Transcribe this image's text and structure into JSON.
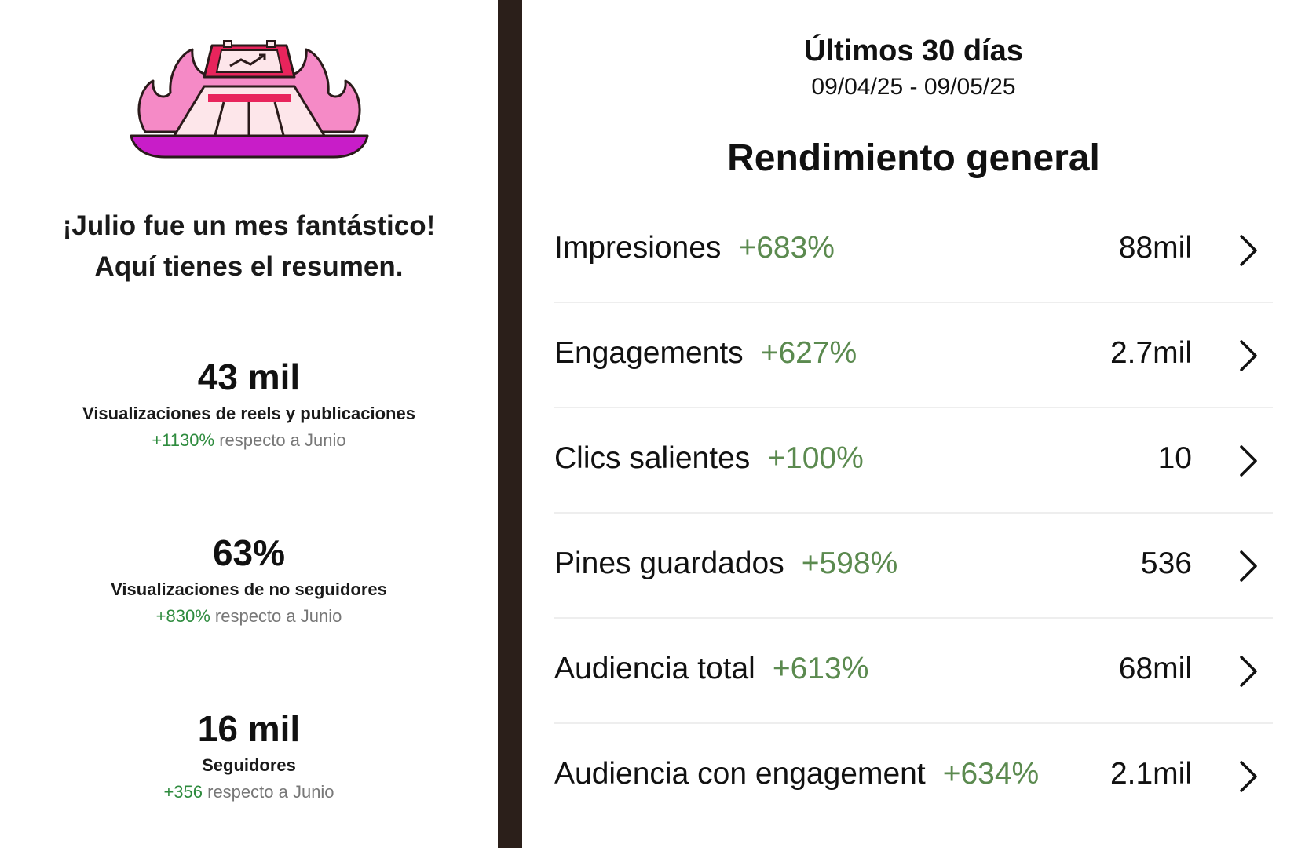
{
  "left": {
    "headline_line1": "¡Julio fue un mes fantástico!",
    "headline_line2": "Aquí tienes el resumen.",
    "stats": [
      {
        "value": "43 mil",
        "label": "Visualizaciones de reels y publicaciones",
        "change": "+1130%",
        "compare_text": " respecto a Junio"
      },
      {
        "value": "63%",
        "label": "Visualizaciones de no seguidores",
        "change": "+830%",
        "compare_text": " respecto a Junio"
      },
      {
        "value": "16 mil",
        "label": "Seguidores",
        "change": "+356",
        "compare_text": " respecto a Junio"
      }
    ]
  },
  "right": {
    "period_title": "Últimos 30 días",
    "period_range": "09/04/25 - 09/05/25",
    "section_title": "Rendimiento general",
    "metrics": [
      {
        "name": "Impresiones",
        "change": "+683%",
        "value": "88mil"
      },
      {
        "name": "Engagements",
        "change": "+627%",
        "value": "2.7mil"
      },
      {
        "name": "Clics salientes",
        "change": "+100%",
        "value": "10"
      },
      {
        "name": "Pines guardados",
        "change": "+598%",
        "value": "536"
      },
      {
        "name": "Audiencia total",
        "change": "+613%",
        "value": "68mil"
      },
      {
        "name": "Audiencia con engagement",
        "change": "+634%",
        "value": "2.1mil"
      }
    ]
  },
  "colors": {
    "positive_left": "#2e8b3e",
    "positive_right": "#5b8a4f",
    "divider": "#2b1f1a",
    "flame_pink": "#f58ac6",
    "base_magenta": "#c81dc8"
  },
  "icons": {
    "illustration": "flaming-stage-chart-icon",
    "row_arrow": "chevron-right-icon"
  }
}
